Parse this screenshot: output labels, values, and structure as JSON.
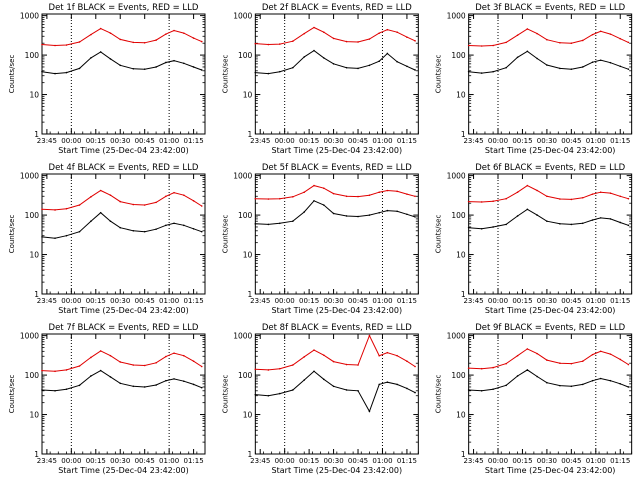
{
  "figure": {
    "start_time_label": "Start Time (25-Dec-04 23:42:00)",
    "ylabel": "Counts/sec",
    "time_ticks": [
      "23:45",
      "00:00",
      "00:15",
      "00:30",
      "00:45",
      "01:00",
      "01:15"
    ],
    "y_ticks": [
      "1",
      "10",
      "100",
      "1000"
    ]
  },
  "colors": {
    "events": "#000000",
    "lld": "#e00000"
  },
  "chart_data": [
    {
      "type": "line",
      "title": "Det 1f BLACK = Events, RED = LLD",
      "xlabel": "Start Time (25-Dec-04 23:42:00)",
      "ylabel": "Counts/sec",
      "ylog": true,
      "ylim": [
        1,
        1100
      ],
      "x": [
        "23:42",
        "23:50",
        "23:57",
        "00:05",
        "00:12",
        "00:18",
        "00:24",
        "00:30",
        "00:38",
        "00:45",
        "00:52",
        "00:58",
        "01:03",
        "01:09",
        "01:15",
        "01:20"
      ],
      "series": [
        {
          "name": "LLD",
          "color": "#e00000",
          "values": [
            185,
            175,
            180,
            215,
            330,
            470,
            360,
            250,
            210,
            205,
            240,
            340,
            420,
            360,
            270,
            220
          ]
        },
        {
          "name": "Events",
          "color": "#000000",
          "values": [
            38,
            34,
            36,
            46,
            85,
            120,
            80,
            55,
            45,
            44,
            50,
            65,
            72,
            62,
            50,
            42
          ]
        }
      ]
    },
    {
      "type": "line",
      "title": "Det 2f BLACK = Events, RED = LLD",
      "xlabel": "Start Time (25-Dec-04 23:42:00)",
      "ylabel": "Counts/sec",
      "ylog": true,
      "ylim": [
        1,
        1100
      ],
      "x": [
        "23:42",
        "23:50",
        "23:57",
        "00:05",
        "00:12",
        "00:18",
        "00:24",
        "00:30",
        "00:38",
        "00:45",
        "00:52",
        "00:58",
        "01:03",
        "01:09",
        "01:15",
        "01:20"
      ],
      "series": [
        {
          "name": "LLD",
          "color": "#e00000",
          "values": [
            195,
            185,
            190,
            225,
            350,
            500,
            380,
            265,
            220,
            215,
            255,
            360,
            440,
            380,
            285,
            230
          ]
        },
        {
          "name": "Events",
          "color": "#000000",
          "values": [
            36,
            34,
            38,
            48,
            90,
            130,
            85,
            60,
            48,
            46,
            55,
            70,
            110,
            68,
            52,
            42
          ]
        }
      ]
    },
    {
      "type": "line",
      "title": "Det 3f BLACK = Events, RED = LLD",
      "xlabel": "Start Time (25-Dec-04 23:42:00)",
      "ylabel": "Counts/sec",
      "ylog": true,
      "ylim": [
        1,
        1100
      ],
      "x": [
        "23:42",
        "23:50",
        "23:57",
        "00:05",
        "00:12",
        "00:18",
        "00:24",
        "00:30",
        "00:38",
        "00:45",
        "00:52",
        "00:58",
        "01:03",
        "01:09",
        "01:15",
        "01:20"
      ],
      "series": [
        {
          "name": "LLD",
          "color": "#e00000",
          "values": [
            175,
            170,
            175,
            210,
            320,
            460,
            350,
            245,
            205,
            200,
            235,
            330,
            400,
            340,
            260,
            210
          ]
        },
        {
          "name": "Events",
          "color": "#000000",
          "values": [
            38,
            35,
            38,
            48,
            88,
            125,
            82,
            56,
            46,
            44,
            50,
            66,
            74,
            64,
            52,
            44
          ]
        }
      ]
    },
    {
      "type": "line",
      "title": "Det 4f BLACK = Events, RED = LLD",
      "xlabel": "Start Time (25-Dec-04 23:42:00)",
      "ylabel": "Counts/sec",
      "ylog": true,
      "ylim": [
        1,
        1100
      ],
      "x": [
        "23:42",
        "23:50",
        "23:57",
        "00:05",
        "00:12",
        "00:18",
        "00:24",
        "00:30",
        "00:38",
        "00:45",
        "00:52",
        "00:58",
        "01:03",
        "01:09",
        "01:15",
        "01:20"
      ],
      "series": [
        {
          "name": "LLD",
          "color": "#e00000",
          "values": [
            140,
            135,
            145,
            180,
            290,
            420,
            320,
            220,
            185,
            180,
            210,
            300,
            370,
            320,
            230,
            170
          ]
        },
        {
          "name": "Events",
          "color": "#000000",
          "values": [
            28,
            26,
            30,
            38,
            70,
            115,
            70,
            48,
            40,
            38,
            44,
            55,
            62,
            55,
            45,
            38
          ]
        }
      ]
    },
    {
      "type": "line",
      "title": "Det 5f BLACK = Events, RED = LLD",
      "xlabel": "Start Time (25-Dec-04 23:42:00)",
      "ylabel": "Counts/sec",
      "ylog": true,
      "ylim": [
        1,
        1100
      ],
      "x": [
        "23:42",
        "23:50",
        "23:57",
        "00:05",
        "00:12",
        "00:18",
        "00:24",
        "00:30",
        "00:38",
        "00:45",
        "00:52",
        "00:58",
        "01:03",
        "01:09",
        "01:15",
        "01:20"
      ],
      "series": [
        {
          "name": "LLD",
          "color": "#e00000",
          "values": [
            260,
            255,
            260,
            290,
            380,
            560,
            480,
            350,
            300,
            295,
            320,
            380,
            420,
            400,
            340,
            300
          ]
        },
        {
          "name": "Events",
          "color": "#000000",
          "values": [
            60,
            58,
            62,
            70,
            120,
            230,
            180,
            110,
            95,
            92,
            100,
            115,
            130,
            125,
            105,
            90
          ]
        }
      ]
    },
    {
      "type": "line",
      "title": "Det 6f BLACK = Events, RED = LLD",
      "xlabel": "Start Time (25-Dec-04 23:42:00)",
      "ylabel": "Counts/sec",
      "ylog": true,
      "ylim": [
        1,
        1100
      ],
      "x": [
        "23:42",
        "23:50",
        "23:57",
        "00:05",
        "00:12",
        "00:18",
        "00:24",
        "00:30",
        "00:38",
        "00:45",
        "00:52",
        "00:58",
        "01:03",
        "01:09",
        "01:15",
        "01:20"
      ],
      "series": [
        {
          "name": "LLD",
          "color": "#e00000",
          "values": [
            220,
            215,
            225,
            260,
            380,
            560,
            420,
            300,
            255,
            250,
            275,
            340,
            380,
            360,
            300,
            260
          ]
        },
        {
          "name": "Events",
          "color": "#000000",
          "values": [
            48,
            45,
            50,
            58,
            95,
            140,
            100,
            70,
            60,
            58,
            62,
            75,
            85,
            80,
            65,
            55
          ]
        }
      ]
    },
    {
      "type": "line",
      "title": "Det 7f BLACK = Events, RED = LLD",
      "xlabel": "Start Time (25-Dec-04 23:42:00)",
      "ylabel": "Counts/sec",
      "ylog": true,
      "ylim": [
        1,
        1100
      ],
      "x": [
        "23:42",
        "23:50",
        "23:57",
        "00:05",
        "00:12",
        "00:18",
        "00:24",
        "00:30",
        "00:38",
        "00:45",
        "00:52",
        "00:58",
        "01:03",
        "01:09",
        "01:15",
        "01:20"
      ],
      "series": [
        {
          "name": "LLD",
          "color": "#e00000",
          "values": [
            130,
            125,
            135,
            170,
            280,
            410,
            310,
            215,
            180,
            175,
            205,
            295,
            360,
            310,
            225,
            165
          ]
        },
        {
          "name": "Events",
          "color": "#000000",
          "values": [
            42,
            40,
            44,
            55,
            95,
            130,
            90,
            62,
            52,
            50,
            56,
            72,
            80,
            70,
            58,
            48
          ]
        }
      ]
    },
    {
      "type": "line",
      "title": "Det 8f BLACK = Events, RED = LLD",
      "xlabel": "Start Time (25-Dec-04 23:42:00)",
      "ylabel": "Counts/sec",
      "ylog": true,
      "ylim": [
        1,
        1100
      ],
      "x": [
        "23:42",
        "23:50",
        "23:57",
        "00:05",
        "00:12",
        "00:18",
        "00:24",
        "00:30",
        "00:38",
        "00:45",
        "00:52",
        "00:58",
        "01:03",
        "01:09",
        "01:15",
        "01:20"
      ],
      "series": [
        {
          "name": "LLD",
          "color": "#e00000",
          "values": [
            140,
            135,
            145,
            180,
            290,
            430,
            320,
            220,
            185,
            180,
            1000,
            310,
            370,
            310,
            225,
            165
          ]
        },
        {
          "name": "Events",
          "color": "#000000",
          "values": [
            32,
            30,
            34,
            42,
            75,
            125,
            78,
            52,
            42,
            40,
            12,
            58,
            66,
            58,
            46,
            36
          ]
        }
      ]
    },
    {
      "type": "line",
      "title": "Det 9f BLACK = Events, RED = LLD",
      "xlabel": "Start Time (25-Dec-04 23:42:00)",
      "ylabel": "Counts/sec",
      "ylog": true,
      "ylim": [
        1,
        1100
      ],
      "x": [
        "23:42",
        "23:50",
        "23:57",
        "00:05",
        "00:12",
        "00:18",
        "00:24",
        "00:30",
        "00:38",
        "00:45",
        "00:52",
        "00:58",
        "01:03",
        "01:09",
        "01:15",
        "01:20"
      ],
      "series": [
        {
          "name": "LLD",
          "color": "#e00000",
          "values": [
            150,
            145,
            155,
            195,
            310,
            460,
            350,
            240,
            200,
            195,
            225,
            330,
            400,
            340,
            250,
            185
          ]
        },
        {
          "name": "Events",
          "color": "#000000",
          "values": [
            42,
            40,
            44,
            55,
            95,
            135,
            92,
            64,
            54,
            52,
            58,
            72,
            82,
            72,
            60,
            50
          ]
        }
      ]
    }
  ]
}
